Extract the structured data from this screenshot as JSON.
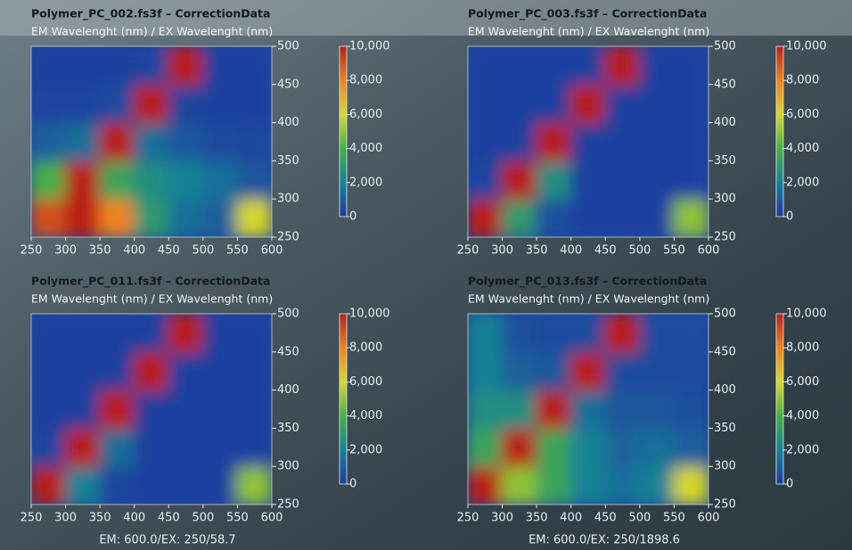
{
  "chart_data": [
    {
      "type": "contour",
      "title": "Polymer_PC_002.fs3f – CorrectionData",
      "subtitle": "EM Wavelenght (nm) / EX Wavelenght (nm)",
      "x": [
        275,
        325,
        375,
        425,
        475,
        525,
        575
      ],
      "y": [
        275,
        325,
        375,
        425,
        475
      ],
      "z": [
        [
          9000,
          10000,
          8000,
          3000,
          1500,
          1000,
          6000
        ],
        [
          4000,
          10000,
          3500,
          2500,
          2000,
          1500,
          800
        ],
        [
          1000,
          1500,
          10000,
          1500,
          800,
          500,
          400
        ],
        [
          300,
          300,
          500,
          10000,
          300,
          200,
          200
        ],
        [
          200,
          200,
          200,
          300,
          10000,
          200,
          200
        ]
      ],
      "xlim": [
        250,
        600
      ],
      "xticks": [
        250,
        300,
        350,
        400,
        450,
        500,
        550,
        600
      ],
      "ylim": [
        250,
        500
      ],
      "yticks": [
        250,
        300,
        350,
        400,
        450,
        500
      ],
      "clim": [
        0,
        10000
      ],
      "cticks": [
        0,
        {
          "value": 2000,
          "label": "2,000"
        },
        {
          "value": 4000,
          "label": "4,000"
        },
        {
          "value": 6000,
          "label": "6,000"
        },
        {
          "value": 8000,
          "label": "8,000"
        },
        {
          "value": 10000,
          "label": "10,000"
        }
      ]
    },
    {
      "type": "contour",
      "title": "Polymer_PC_003.fs3f – CorrectionData",
      "subtitle": "EM Wavelenght (nm) / EX Wavelenght (nm)",
      "x": [
        275,
        325,
        375,
        425,
        475,
        525,
        575
      ],
      "y": [
        275,
        325,
        375,
        425,
        475
      ],
      "z": [
        [
          10000,
          3000,
          600,
          200,
          200,
          200,
          5000
        ],
        [
          300,
          10000,
          2500,
          200,
          200,
          200,
          200
        ],
        [
          200,
          200,
          10000,
          200,
          200,
          200,
          200
        ],
        [
          200,
          200,
          200,
          10000,
          200,
          200,
          200
        ],
        [
          200,
          200,
          200,
          200,
          10000,
          200,
          200
        ]
      ],
      "xlim": [
        250,
        600
      ],
      "xticks": [
        250,
        300,
        350,
        400,
        450,
        500,
        550,
        600
      ],
      "ylim": [
        250,
        500
      ],
      "yticks": [
        250,
        300,
        350,
        400,
        450,
        500
      ],
      "clim": [
        0,
        10000
      ],
      "cticks": [
        0,
        {
          "value": 2000,
          "label": "2,000"
        },
        {
          "value": 4000,
          "label": "4,000"
        },
        {
          "value": 6000,
          "label": "6,000"
        },
        {
          "value": 8000,
          "label": "8,000"
        },
        {
          "value": 10000,
          "label": "10,000"
        }
      ]
    },
    {
      "type": "contour",
      "title": "Polymer_PC_011.fs3f – CorrectionData",
      "subtitle": "EM Wavelenght (nm) / EX Wavelenght (nm)",
      "x": [
        275,
        325,
        375,
        425,
        475,
        525,
        575
      ],
      "y": [
        275,
        325,
        375,
        425,
        475
      ],
      "z": [
        [
          10000,
          2000,
          300,
          200,
          200,
          200,
          5000
        ],
        [
          300,
          10000,
          1500,
          200,
          200,
          200,
          200
        ],
        [
          200,
          200,
          10000,
          200,
          200,
          200,
          200
        ],
        [
          200,
          200,
          200,
          10000,
          200,
          200,
          200
        ],
        [
          200,
          200,
          200,
          200,
          10000,
          200,
          200
        ]
      ],
      "xlim": [
        250,
        600
      ],
      "xticks": [
        250,
        300,
        350,
        400,
        450,
        500,
        550,
        600
      ],
      "ylim": [
        250,
        500
      ],
      "yticks": [
        250,
        300,
        350,
        400,
        450,
        500
      ],
      "clim": [
        0,
        10000
      ],
      "cticks": [
        0,
        {
          "value": 2000,
          "label": "2,000"
        },
        {
          "value": 4000,
          "label": "4,000"
        },
        {
          "value": 6000,
          "label": "6,000"
        },
        {
          "value": 8000,
          "label": "8,000"
        },
        {
          "value": 10000,
          "label": "10,000"
        }
      ],
      "note": "EM: 600.0/EX: 250/58.7"
    },
    {
      "type": "contour",
      "title": "Polymer_PC_013.fs3f – CorrectionData",
      "subtitle": "EM Wavelenght (nm) / EX Wavelenght (nm)",
      "x": [
        275,
        325,
        375,
        425,
        475,
        525,
        575
      ],
      "y": [
        275,
        325,
        375,
        425,
        475
      ],
      "z": [
        [
          10000,
          5000,
          3500,
          2000,
          1500,
          2000,
          6000
        ],
        [
          3500,
          10000,
          3500,
          2000,
          1200,
          1500,
          1000
        ],
        [
          2500,
          2500,
          10000,
          1500,
          800,
          800,
          600
        ],
        [
          2000,
          1000,
          800,
          10000,
          500,
          500,
          500
        ],
        [
          2000,
          600,
          500,
          500,
          10000,
          500,
          500
        ]
      ],
      "xlim": [
        250,
        600
      ],
      "xticks": [
        250,
        300,
        350,
        400,
        450,
        500,
        550,
        600
      ],
      "ylim": [
        250,
        500
      ],
      "yticks": [
        250,
        300,
        350,
        400,
        450,
        500
      ],
      "clim": [
        0,
        10000
      ],
      "cticks": [
        0,
        {
          "value": 2000,
          "label": "2,000"
        },
        {
          "value": 4000,
          "label": "4,000"
        },
        {
          "value": 6000,
          "label": "6,000"
        },
        {
          "value": 8000,
          "label": "8,000"
        },
        {
          "value": 10000,
          "label": "10,000"
        }
      ],
      "note": "EM: 600.0/EX: 250/1898.6"
    }
  ]
}
